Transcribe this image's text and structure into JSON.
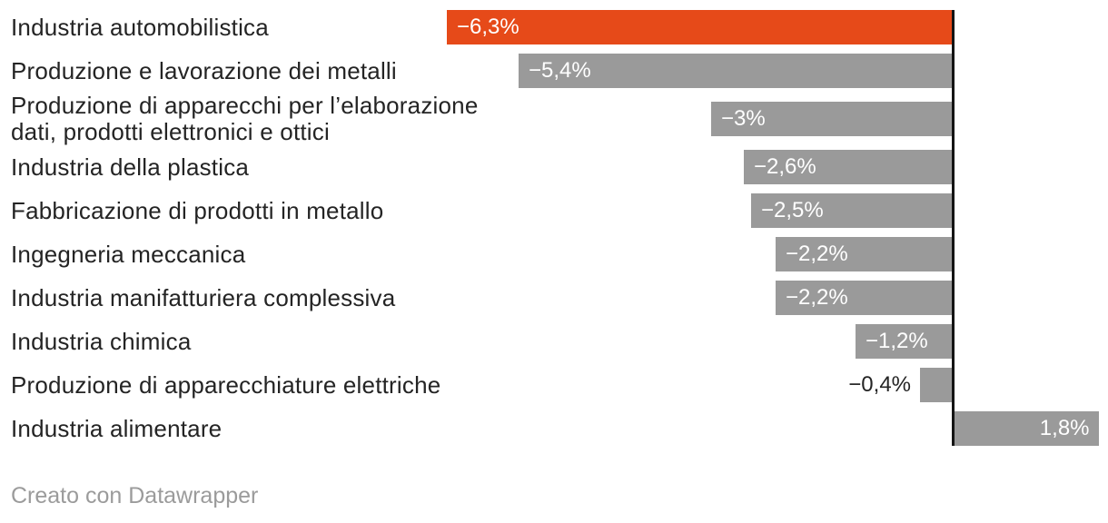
{
  "chart_data": {
    "type": "bar",
    "orientation": "horizontal",
    "categories": [
      "Industria automobilistica",
      "Produzione e lavorazione dei metalli",
      "Produzione di apparecchi per l’elaborazione dati, prodotti elettronici e ottici",
      "Industria della plastica",
      "Fabbricazione di prodotti in metallo",
      "Ingegneria meccanica",
      "Industria manifatturiera complessiva",
      "Industria chimica",
      "Produzione di apparecchiature elettriche",
      "Industria alimentare"
    ],
    "values": [
      -6.3,
      -5.4,
      -3,
      -2.6,
      -2.5,
      -2.2,
      -2.2,
      -1.2,
      -0.4,
      1.8
    ],
    "value_labels": [
      "−6,3%",
      "−5,4%",
      "−3%",
      "−2,6%",
      "−2,5%",
      "−2,2%",
      "−2,2%",
      "−1,2%",
      "−0,4%",
      "1,8%"
    ],
    "unit": "%",
    "highlight_index": 0,
    "label_placement": [
      "inside-left",
      "inside-left",
      "inside-left",
      "inside-left",
      "inside-left",
      "inside-left",
      "inside-left",
      "inside-left",
      "outside-left",
      "inside-right"
    ],
    "axis": {
      "zero_baseline": true,
      "min": -6.3,
      "max": 1.8,
      "gridlines": false,
      "tick_labels": false
    },
    "colors": {
      "highlight": "#e64a19",
      "default": "#9a9a9a",
      "baseline": "#141414",
      "value_inside": "#ffffff",
      "value_outside": "#242424",
      "category_text": "#242424",
      "footer_text": "#9b9b9b"
    }
  },
  "footer": {
    "credit": "Creato con Datawrapper"
  }
}
